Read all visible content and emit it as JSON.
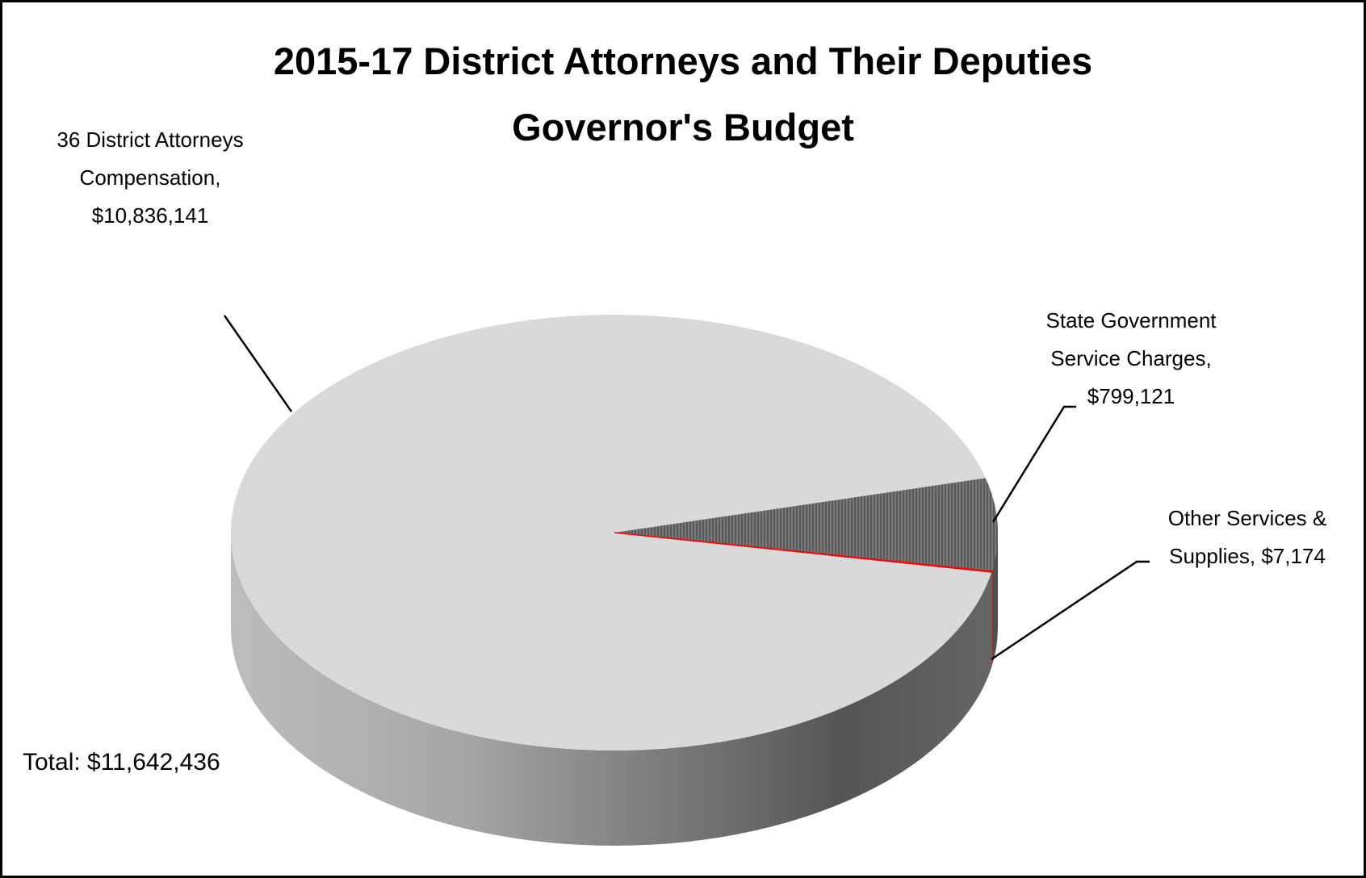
{
  "chart_data": {
    "type": "pie",
    "title": "2015-17 District Attorneys and Their Deputies",
    "subtitle": "Governor's Budget",
    "categories": [
      "36 District Attorneys Compensation,",
      "State Government Service Charges,",
      "Other Services & Supplies,"
    ],
    "values": [
      10836141,
      799121,
      7174
    ],
    "value_labels": [
      "$10,836,141",
      "$799,121",
      "$7,174"
    ],
    "colors": [
      "#d9d9d9",
      "#595959",
      "#ff0000"
    ],
    "annotation": "Total: $11,642,436"
  }
}
